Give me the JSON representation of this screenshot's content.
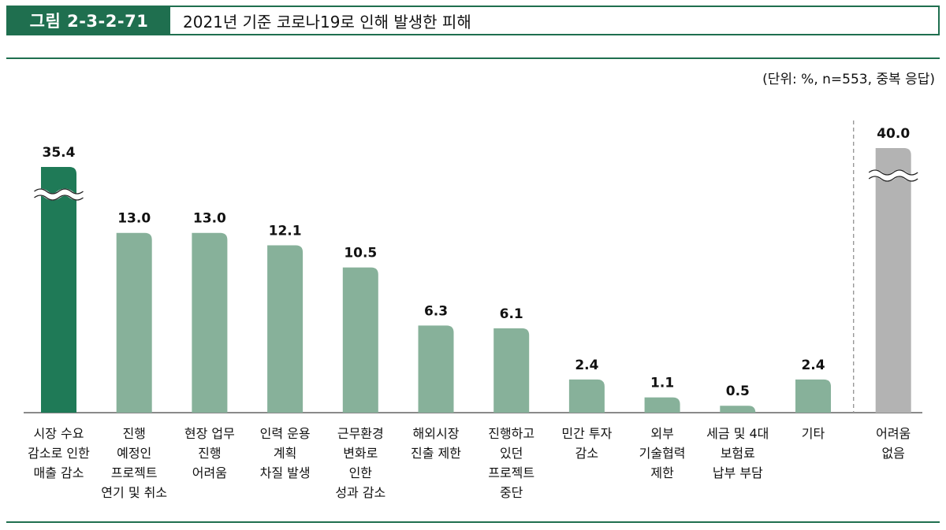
{
  "header": {
    "figure_label": "그림 2-3-2-71",
    "title": "2021년 기준 코로나19로 인해 발생한 피해"
  },
  "unit_note": "(단위: %, n=553, 중복 응답)",
  "colors": {
    "brand": "#1f6f4f",
    "highlight_bar": "#1f7a57",
    "bar": "#87b19a",
    "other_bar": "#b3b3b3"
  },
  "chart_data": {
    "type": "bar",
    "title": "2021년 기준 코로나19로 인해 발생한 피해",
    "unit": "%",
    "categories": [
      "시장 수요\n감소로 인한\n매출 감소",
      "진행\n예정인\n프로젝트\n연기 및 취소",
      "현장 업무\n진행\n어려움",
      "인력 운용\n계획\n차질 발생",
      "근무환경\n변화로\n인한\n성과 감소",
      "해외시장\n진출 제한",
      "진행하고\n있던\n프로젝트\n중단",
      "민간 투자\n감소",
      "외부\n기술협력\n제한",
      "세금 및 4대\n보험료\n납부 부담",
      "기타",
      "어려움\n없음"
    ],
    "values": [
      35.4,
      13.0,
      13.0,
      12.1,
      10.5,
      6.3,
      6.1,
      2.4,
      1.1,
      0.5,
      2.4,
      40.0
    ],
    "value_labels": [
      "35.4",
      "13.0",
      "13.0",
      "12.1",
      "10.5",
      "6.3",
      "6.1",
      "2.4",
      "1.1",
      "0.5",
      "2.4",
      "40.0"
    ],
    "highlight_index": 0,
    "separate_index": 11,
    "axis_break_indices": [
      0,
      11
    ],
    "ylim": [
      0,
      15.5
    ]
  }
}
